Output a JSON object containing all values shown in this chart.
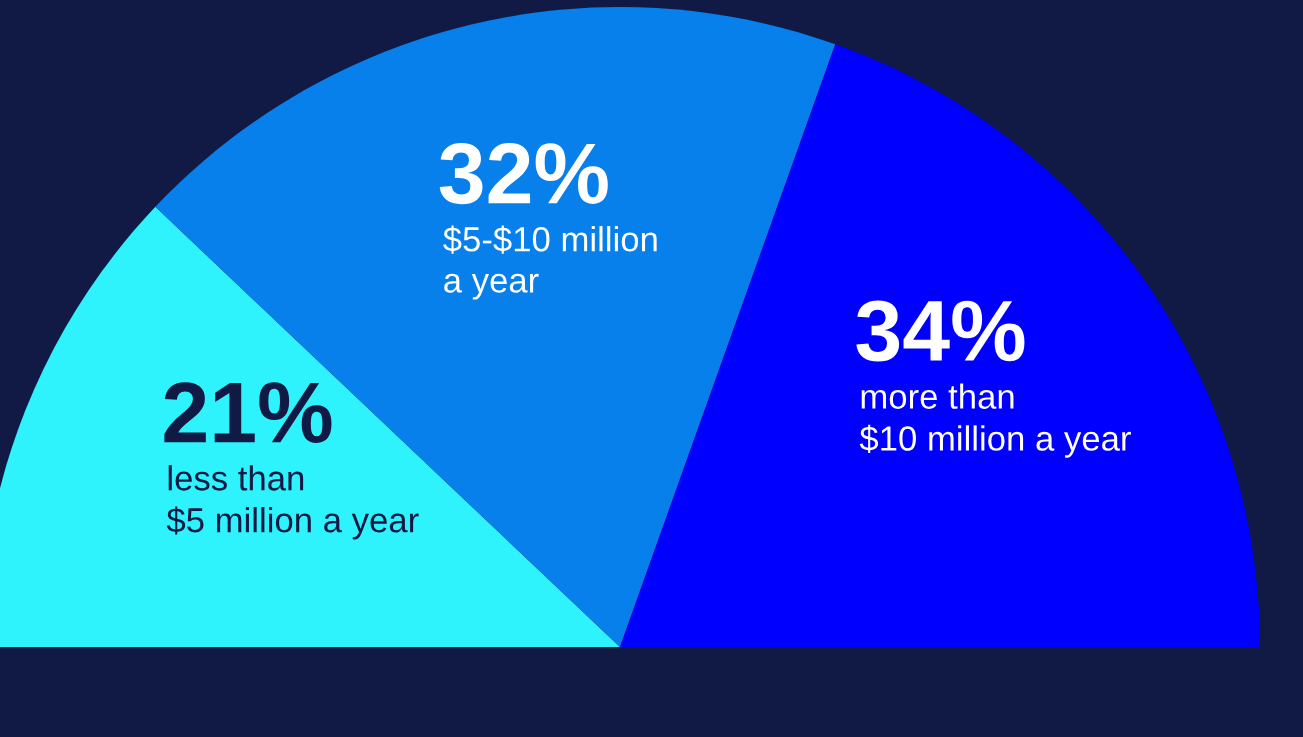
{
  "chart_data": {
    "type": "pie",
    "categories": [
      "less than\n$5 million a year",
      "$5-$10 million\na year",
      "more than\n$10 million a year"
    ],
    "values": [
      21,
      32,
      34
    ],
    "colors": [
      "#2ef2fc",
      "#0780ec",
      "#0000fe"
    ],
    "value_labels": [
      "21%",
      "32%",
      "34%"
    ]
  }
}
